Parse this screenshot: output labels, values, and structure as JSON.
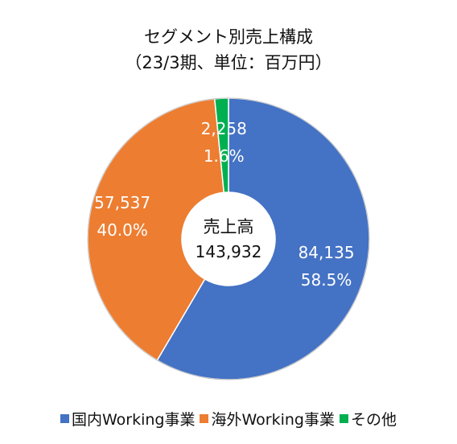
{
  "chart_data": {
    "type": "pie",
    "subtype": "donut",
    "title": "セグメント別売上構成",
    "subtitle": "（23/3期、単位：百万円）",
    "center_label": "売上高",
    "center_value": "143,932",
    "categories": [
      "国内Working事業",
      "海外Working事業",
      "その他"
    ],
    "values": [
      84135,
      57537,
      2258
    ],
    "value_labels": [
      "84,135",
      "57,537",
      "2,258"
    ],
    "percent_labels": [
      "58.5%",
      "40.0%",
      "1.6%"
    ],
    "colors": [
      "#4472C4",
      "#ED7D31",
      "#00B050"
    ],
    "legend_position": "bottom"
  }
}
